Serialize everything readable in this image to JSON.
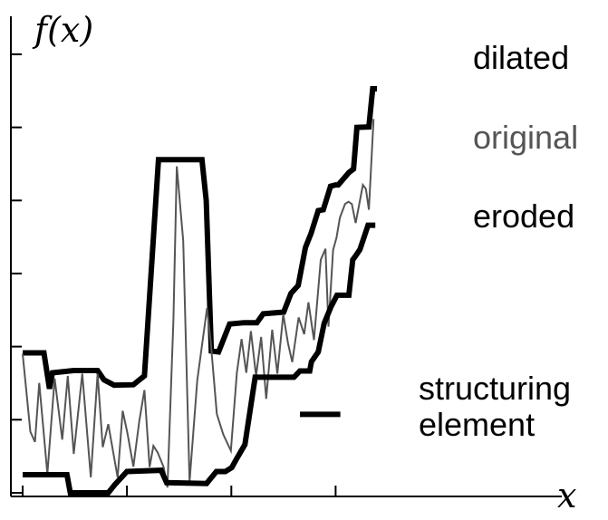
{
  "chart_data": {
    "type": "line",
    "ylabel": "f(x)",
    "xlabel": "x",
    "xlim": [
      0,
      100
    ],
    "ylim": [
      0,
      100
    ],
    "x_ticks": [
      0,
      24.5,
      49,
      73.5
    ],
    "y_ticks": [
      0,
      16.5,
      33,
      49.5,
      66,
      82.5,
      99
    ],
    "series": [
      {
        "name": "dilated",
        "color": "#000000",
        "width": 6,
        "points": [
          [
            0,
            31.6
          ],
          [
            5,
            31.6
          ],
          [
            6.3,
            23.5
          ],
          [
            7,
            27.1
          ],
          [
            12,
            27.6
          ],
          [
            17.6,
            27.6
          ],
          [
            19.1,
            25.5
          ],
          [
            21.5,
            24.3
          ],
          [
            26,
            24.4
          ],
          [
            28.6,
            26.4
          ],
          [
            31.9,
            75.2
          ],
          [
            42.1,
            75.2
          ],
          [
            43.1,
            66
          ],
          [
            44.3,
            32
          ],
          [
            46,
            31.8
          ],
          [
            48.6,
            38.1
          ],
          [
            52,
            38.4
          ],
          [
            55,
            38.4
          ],
          [
            56.5,
            40.4
          ],
          [
            61.3,
            40.8
          ],
          [
            63,
            45
          ],
          [
            64.7,
            46.8
          ],
          [
            66.4,
            55.4
          ],
          [
            67.7,
            58.5
          ],
          [
            69.4,
            63.7
          ],
          [
            70.6,
            63.9
          ],
          [
            72.3,
            69.2
          ],
          [
            73.5,
            69.5
          ],
          [
            74.1,
            69.5
          ],
          [
            76.6,
            72.3
          ],
          [
            77.7,
            73.1
          ],
          [
            78.5,
            82.5
          ],
          [
            81.3,
            82.6
          ],
          [
            82.2,
            91.2
          ],
          [
            83.2,
            91.2
          ]
        ]
      },
      {
        "name": "original",
        "color": "#555555",
        "width": 2,
        "points": [
          [
            0,
            31.4
          ],
          [
            1.8,
            13.8
          ],
          [
            2.9,
            11.5
          ],
          [
            3.9,
            24.8
          ],
          [
            5.8,
            4.3
          ],
          [
            7.5,
            25.8
          ],
          [
            9.3,
            12
          ],
          [
            10.6,
            26.4
          ],
          [
            12,
            8.8
          ],
          [
            14,
            26.9
          ],
          [
            16,
            3.5
          ],
          [
            17.6,
            26.9
          ],
          [
            18.8,
            10.3
          ],
          [
            20.1,
            15.5
          ],
          [
            22.3,
            3.5
          ],
          [
            23.5,
            18.5
          ],
          [
            24.6,
            13.5
          ],
          [
            26,
            5.9
          ],
          [
            27.4,
            16.3
          ],
          [
            28.6,
            23.2
          ],
          [
            29.8,
            5.8
          ],
          [
            30.7,
            10.6
          ],
          [
            31.7,
            9.1
          ],
          [
            33.1,
            5.8
          ],
          [
            34,
            1.2
          ],
          [
            35.4,
            39.1
          ],
          [
            36.2,
            73.7
          ],
          [
            37.7,
            56.9
          ],
          [
            39.2,
            2.5
          ],
          [
            41,
            25.4
          ],
          [
            43.3,
            41.7
          ],
          [
            44.2,
            33.8
          ],
          [
            45.6,
            17.8
          ],
          [
            47.1,
            13.2
          ],
          [
            48.9,
            9.5
          ],
          [
            50.3,
            27.1
          ],
          [
            51.4,
            34.7
          ],
          [
            52.5,
            27.1
          ],
          [
            53.6,
            36.5
          ],
          [
            54.8,
            26.4
          ],
          [
            56,
            35.2
          ],
          [
            57.2,
            21.2
          ],
          [
            58.6,
            36.8
          ],
          [
            59.8,
            26.9
          ],
          [
            61.2,
            40.3
          ],
          [
            62.3,
            33.8
          ],
          [
            63.3,
            29.5
          ],
          [
            64.8,
            39.6
          ],
          [
            66.1,
            35.8
          ],
          [
            67.1,
            43
          ],
          [
            68.4,
            34.5
          ],
          [
            70,
            52.6
          ],
          [
            71.1,
            55.1
          ],
          [
            71.8,
            37.5
          ],
          [
            72.9,
            54.8
          ],
          [
            73.7,
            57.6
          ],
          [
            74.5,
            62.1
          ],
          [
            75.7,
            65.2
          ],
          [
            76.5,
            65.7
          ],
          [
            77.3,
            65.2
          ],
          [
            78.2,
            60.9
          ],
          [
            79.1,
            65.5
          ],
          [
            79.9,
            69.5
          ],
          [
            80.6,
            68.6
          ],
          [
            81.3,
            63.9
          ],
          [
            82.4,
            84.4
          ]
        ]
      },
      {
        "name": "eroded",
        "color": "#000000",
        "width": 6,
        "points": [
          [
            0,
            4.1
          ],
          [
            10.4,
            4.1
          ],
          [
            11.2,
            0
          ],
          [
            20.1,
            0
          ],
          [
            21.6,
            1.8
          ],
          [
            24.5,
            4.8
          ],
          [
            32.5,
            5.1
          ],
          [
            33.8,
            2.3
          ],
          [
            43.2,
            2.1
          ],
          [
            45.5,
            4.8
          ],
          [
            47.6,
            4.8
          ],
          [
            49.1,
            5.7
          ],
          [
            50.2,
            7.6
          ],
          [
            52.2,
            10.9
          ],
          [
            54.6,
            26.1
          ],
          [
            63.7,
            26.1
          ],
          [
            65.1,
            27.5
          ],
          [
            67.4,
            27.5
          ],
          [
            67.8,
            29.6
          ],
          [
            69.4,
            31.8
          ],
          [
            70.8,
            38.3
          ],
          [
            72.4,
            42
          ],
          [
            73.8,
            44.6
          ],
          [
            74.7,
            44.6
          ],
          [
            76.6,
            44.6
          ],
          [
            77.5,
            52.6
          ],
          [
            78.2,
            53.5
          ],
          [
            79.2,
            54.9
          ],
          [
            81.1,
            60.4
          ],
          [
            82.8,
            60.4
          ]
        ]
      },
      {
        "name": "structuring element",
        "color": "#000000",
        "width": 6,
        "points": [
          [
            65.1,
            17.7
          ],
          [
            74.6,
            17.7
          ]
        ]
      }
    ],
    "legend": {
      "dilated": "dilated",
      "original": "original",
      "eroded": "eroded",
      "structuring_line1": "structuring",
      "structuring_line2": "element"
    }
  }
}
